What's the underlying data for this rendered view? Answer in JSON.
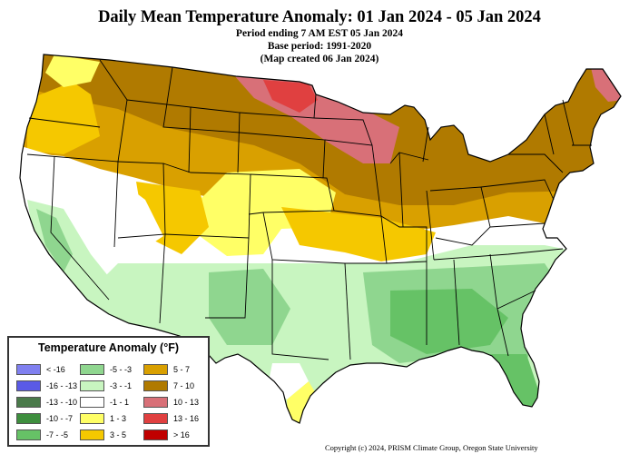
{
  "title": "Daily Mean Temperature Anomaly: 01 Jan 2024 - 05 Jan 2024",
  "subtitle_period": "Period ending 7 AM EST 05 Jan 2024",
  "subtitle_base": "Base period: 1991-2020",
  "subtitle_created": "(Map created 06 Jan 2024)",
  "legend": {
    "title": "Temperature Anomaly (°F)",
    "items": [
      {
        "label": "< -16",
        "color": "#8080f0"
      },
      {
        "label": "-16 - -13",
        "color": "#5a5ae6"
      },
      {
        "label": "-13 - -10",
        "color": "#4a7a4a"
      },
      {
        "label": "-10 - -7",
        "color": "#3e8e3e"
      },
      {
        "label": "-7 - -5",
        "color": "#66c266"
      },
      {
        "label": "-5 - -3",
        "color": "#8fd68f"
      },
      {
        "label": "-3 - -1",
        "color": "#c8f5c0"
      },
      {
        "label": "-1 - 1",
        "color": "#ffffff"
      },
      {
        "label": "1 - 3",
        "color": "#ffff66"
      },
      {
        "label": "3 - 5",
        "color": "#f5c800"
      },
      {
        "label": "5 - 7",
        "color": "#d9a000"
      },
      {
        "label": "7 - 10",
        "color": "#b07a00"
      },
      {
        "label": "10 - 13",
        "color": "#d87078"
      },
      {
        "label": "13 - 16",
        "color": "#e04040"
      },
      {
        "label": "> 16",
        "color": "#c00000"
      }
    ]
  },
  "copyright": "Copyright (c) 2024, PRISM Climate Group, Oregon State University"
}
